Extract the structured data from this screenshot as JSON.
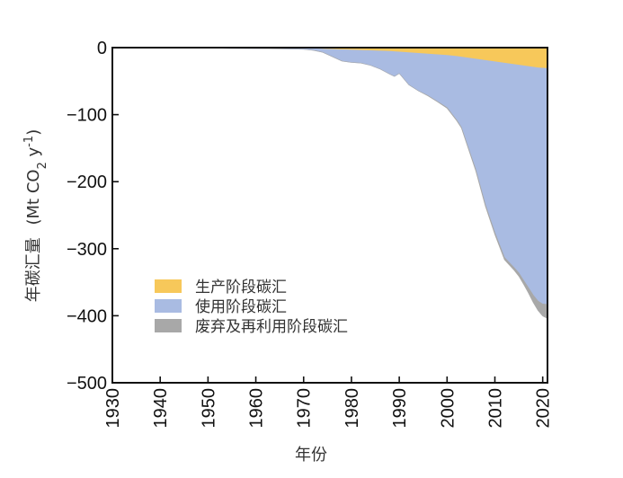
{
  "chart_data": {
    "type": "area",
    "stacked": true,
    "direction": "negative",
    "xlabel": "年份",
    "ylabel": "年碳汇量",
    "ylabel_unit": "(Mt CO2 y-1)",
    "xlim": [
      1930,
      2021
    ],
    "ylim": [
      -500,
      0
    ],
    "xticks": [
      1930,
      1940,
      1950,
      1960,
      1970,
      1980,
      1990,
      2000,
      2010,
      2020
    ],
    "yticks": [
      0,
      -100,
      -200,
      -300,
      -400,
      -500
    ],
    "ytick_labels": [
      "0",
      "−100",
      "−200",
      "−300",
      "−400",
      "−500"
    ],
    "legend_position": "lower-left",
    "x": [
      1953,
      1960,
      1965,
      1970,
      1972,
      1974,
      1976,
      1978,
      1980,
      1982,
      1984,
      1986,
      1988,
      1989,
      1990,
      1991,
      1992,
      1994,
      1996,
      1998,
      2000,
      2002,
      2003,
      2004,
      2006,
      2008,
      2010,
      2012,
      2014,
      2015,
      2016,
      2017,
      2018,
      2019,
      2020,
      2021
    ],
    "series": [
      {
        "name": "生产阶段碳汇",
        "color": "#f7c85a",
        "values": [
          0,
          -0.3,
          -0.5,
          -1,
          -1.5,
          -2,
          -2.5,
          -3,
          -3.5,
          -4,
          -4.5,
          -5,
          -5.5,
          -6,
          -6.5,
          -7,
          -7.5,
          -8.5,
          -9.5,
          -10.5,
          -11.5,
          -13,
          -14,
          -15,
          -17,
          -19,
          -21,
          -23,
          -25,
          -26,
          -27,
          -28,
          -29,
          -30,
          -30.5,
          -31
        ]
      },
      {
        "name": "使用阶段碳汇",
        "color": "#a9bbe2",
        "values": [
          -1,
          -1.2,
          -1.3,
          -1.5,
          -2.5,
          -5,
          -11,
          -17,
          -18.5,
          -19,
          -22,
          -27,
          -34,
          -37,
          -32,
          -40,
          -48,
          -56,
          -62,
          -70,
          -78,
          -95,
          -105,
          -125,
          -165,
          -215,
          -255,
          -290,
          -303,
          -310,
          -320,
          -330,
          -340,
          -348,
          -352,
          -352
        ]
      },
      {
        "name": "废弃及再利用阶段碳汇",
        "color": "#a8a8a8",
        "values": [
          0,
          0,
          0,
          0,
          0,
          0,
          0,
          0,
          0,
          0,
          0,
          0,
          0,
          0,
          0,
          0,
          0,
          0,
          -0.5,
          -0.5,
          -1,
          -1,
          -1,
          -1.5,
          -2,
          -2.5,
          -3,
          -3.5,
          -4,
          -5,
          -6,
          -8,
          -11,
          -14,
          -18,
          -21
        ]
      }
    ]
  }
}
